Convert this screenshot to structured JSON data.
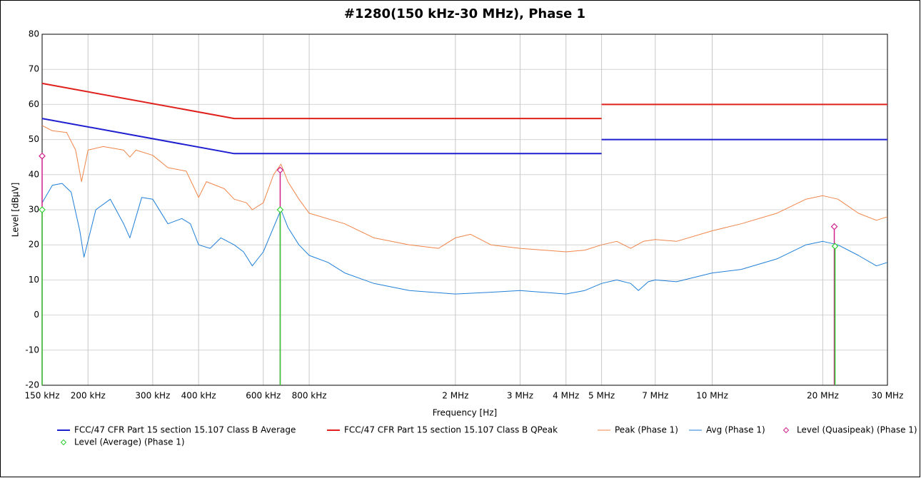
{
  "chart_data": {
    "type": "line",
    "title": "#1280(150 kHz-30 MHz), Phase 1",
    "xlabel": "Frequency [Hz]",
    "ylabel": "Level [dBµV]",
    "xscale": "log",
    "grid": true,
    "xlim": [
      150000,
      30000000
    ],
    "ylim": [
      -20,
      80
    ],
    "yticks": [
      -20,
      -10,
      0,
      10,
      20,
      30,
      40,
      50,
      60,
      70,
      80
    ],
    "xticks": [
      {
        "value": 150000,
        "label": "150 kHz"
      },
      {
        "value": 200000,
        "label": "200 kHz"
      },
      {
        "value": 300000,
        "label": "300 kHz"
      },
      {
        "value": 400000,
        "label": "400 kHz"
      },
      {
        "value": 600000,
        "label": "600 kHz"
      },
      {
        "value": 800000,
        "label": "800 kHz"
      },
      {
        "value": 2000000,
        "label": "2 MHz"
      },
      {
        "value": 3000000,
        "label": "3 MHz"
      },
      {
        "value": 4000000,
        "label": "4 MHz"
      },
      {
        "value": 5000000,
        "label": "5 MHz"
      },
      {
        "value": 7000000,
        "label": "7 MHz"
      },
      {
        "value": 10000000,
        "label": "10 MHz"
      },
      {
        "value": 20000000,
        "label": "20 MHz"
      },
      {
        "value": 30000000,
        "label": "30 MHz"
      }
    ],
    "series": [
      {
        "name": "FCC/47 CFR Part 15 section 15.107 Class B Average",
        "color": "#1f1fd0",
        "width": 2,
        "x": [
          150000,
          500000,
          5000000,
          5000000,
          5000000,
          30000000
        ],
        "values": [
          56,
          46,
          46,
          null,
          50,
          50
        ]
      },
      {
        "name": "FCC/47 CFR Part 15 section 15.107 Class B QPeak",
        "color": "#e0201c",
        "width": 2,
        "x": [
          150000,
          500000,
          5000000,
          5000000,
          5000000,
          30000000
        ],
        "values": [
          66,
          56,
          56,
          null,
          60,
          60
        ]
      },
      {
        "name": "Peak (Phase 1)",
        "color": "#f0854a",
        "width": 1,
        "x": [
          150000,
          160000,
          175000,
          185000,
          192000,
          200000,
          220000,
          250000,
          260000,
          270000,
          300000,
          330000,
          370000,
          390000,
          400000,
          420000,
          470000,
          500000,
          540000,
          560000,
          600000,
          640000,
          670000,
          700000,
          750000,
          800000,
          1000000,
          1200000,
          1500000,
          1800000,
          2000000,
          2200000,
          2500000,
          3000000,
          4000000,
          4500000,
          5000000,
          5500000,
          6000000,
          6500000,
          7000000,
          8000000,
          10000000,
          12000000,
          15000000,
          18000000,
          20000000,
          22000000,
          25000000,
          28000000,
          30000000
        ],
        "values": [
          54,
          52.5,
          52,
          47,
          38,
          47,
          48,
          47,
          45,
          47,
          45.5,
          42,
          41,
          36,
          33.5,
          38,
          36,
          33,
          32,
          30,
          32,
          40,
          43,
          38,
          33,
          29,
          26,
          22,
          20,
          19,
          22,
          23,
          20,
          19,
          18,
          18.5,
          20,
          21,
          19,
          21,
          21.5,
          21,
          24,
          26,
          29,
          33,
          34,
          33,
          29,
          27,
          28
        ]
      },
      {
        "name": "Avg (Phase 1)",
        "color": "#1f7fd8",
        "width": 1,
        "x": [
          150000,
          160000,
          170000,
          180000,
          190000,
          195000,
          210000,
          230000,
          250000,
          260000,
          280000,
          300000,
          330000,
          360000,
          380000,
          400000,
          430000,
          460000,
          500000,
          530000,
          560000,
          600000,
          640000,
          670000,
          700000,
          750000,
          800000,
          900000,
          1000000,
          1200000,
          1500000,
          2000000,
          2500000,
          3000000,
          4000000,
          4500000,
          5000000,
          5500000,
          6000000,
          6300000,
          6700000,
          7000000,
          8000000,
          10000000,
          12000000,
          15000000,
          18000000,
          20000000,
          22000000,
          25000000,
          28000000,
          30000000
        ],
        "values": [
          32,
          37,
          37.5,
          35,
          24,
          16.5,
          30,
          33,
          26,
          22,
          33.5,
          33,
          26,
          27.5,
          26,
          20,
          19,
          22,
          20,
          18,
          14,
          18,
          25,
          30,
          25,
          20,
          17,
          15,
          12,
          9,
          7,
          6,
          6.5,
          7,
          6,
          7,
          9,
          10,
          9,
          7,
          9.5,
          10,
          9.5,
          12,
          13,
          16,
          20,
          21,
          20,
          17,
          14,
          15
        ]
      },
      {
        "name": "Level (Quasipeak) (Phase 1)",
        "color": "#d0208a",
        "marker": "diamond-open",
        "x": [
          150000,
          667000,
          21500000
        ],
        "values": [
          45.3,
          41.3,
          25.2
        ]
      },
      {
        "name": "Level (Average) (Phase 1)",
        "color": "#30d030",
        "marker": "diamond-open",
        "x": [
          150000,
          667000,
          21600000
        ],
        "values": [
          30,
          30,
          19.6
        ]
      }
    ]
  }
}
